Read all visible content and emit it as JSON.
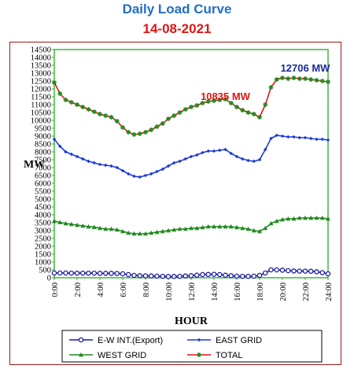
{
  "title": "Daily Load Curve",
  "subtitle": "14-08-2021",
  "chart_data": {
    "type": "line",
    "xlabel": "HOUR",
    "ylabel": "MW",
    "xlim": [
      0,
      24
    ],
    "ylim": [
      0,
      14500
    ],
    "yticks": [
      0,
      500,
      1000,
      1500,
      2000,
      2500,
      3000,
      3500,
      4000,
      4500,
      5000,
      5500,
      6000,
      6500,
      7000,
      7500,
      8000,
      8500,
      9000,
      9500,
      10000,
      10500,
      11000,
      11500,
      12000,
      12500,
      13000,
      13500,
      14000,
      14500
    ],
    "xtick_labels": [
      "0:00",
      "2:00",
      "4:00",
      "6:00",
      "8:00",
      "10:00",
      "12:00",
      "14:00",
      "16:00",
      "18:00",
      "20:00",
      "22:00",
      "24:00"
    ],
    "legend_position": "bottom",
    "annotations": [
      {
        "text": "10835 MW",
        "x": 15,
        "y": 11300,
        "color": "#e01515"
      },
      {
        "text": "12706 MW",
        "x": 22,
        "y": 13100,
        "color": "#1a2a9c"
      }
    ],
    "series": [
      {
        "name": "E-W INT.(Export)",
        "color": "#1a1aa0",
        "marker": "circle",
        "x": [
          0,
          0.5,
          1,
          1.5,
          2,
          2.5,
          3,
          3.5,
          4,
          4.5,
          5,
          5.5,
          6,
          6.5,
          7,
          7.5,
          8,
          8.5,
          9,
          9.5,
          10,
          10.5,
          11,
          11.5,
          12,
          12.5,
          13,
          13.5,
          14,
          14.5,
          15,
          15.5,
          16,
          16.5,
          17,
          17.5,
          18,
          18.5,
          19,
          19.5,
          20,
          20.5,
          21,
          21.5,
          22,
          22.5,
          23,
          23.5,
          24
        ],
        "y": [
          300,
          300,
          300,
          290,
          290,
          290,
          290,
          290,
          280,
          280,
          280,
          270,
          250,
          200,
          150,
          130,
          120,
          110,
          100,
          90,
          80,
          80,
          90,
          110,
          130,
          160,
          200,
          210,
          220,
          200,
          160,
          130,
          100,
          90,
          90,
          100,
          150,
          300,
          500,
          500,
          480,
          450,
          430,
          420,
          420,
          410,
          380,
          320,
          250
        ]
      },
      {
        "name": "EAST GRID",
        "color": "#1a3ad8",
        "marker": "diamond",
        "x": [
          0,
          0.5,
          1,
          1.5,
          2,
          2.5,
          3,
          3.5,
          4,
          4.5,
          5,
          5.5,
          6,
          6.5,
          7,
          7.5,
          8,
          8.5,
          9,
          9.5,
          10,
          10.5,
          11,
          11.5,
          12,
          12.5,
          13,
          13.5,
          14,
          14.5,
          15,
          15.5,
          16,
          16.5,
          17,
          17.5,
          18,
          18.5,
          19,
          19.5,
          20,
          20.5,
          21,
          21.5,
          22,
          22.5,
          23,
          23.5,
          24
        ],
        "y": [
          8800,
          8350,
          8000,
          7850,
          7700,
          7550,
          7400,
          7300,
          7200,
          7150,
          7100,
          7000,
          6800,
          6600,
          6450,
          6400,
          6500,
          6600,
          6750,
          6900,
          7100,
          7300,
          7400,
          7550,
          7700,
          7800,
          7950,
          8050,
          8050,
          8100,
          8150,
          7900,
          7700,
          7550,
          7450,
          7400,
          7500,
          8150,
          8850,
          9050,
          9000,
          8950,
          8950,
          8900,
          8900,
          8850,
          8800,
          8800,
          8750
        ]
      },
      {
        "name": "WEST GRID",
        "color": "#1f8a1f",
        "marker": "triangle",
        "x": [
          0,
          0.5,
          1,
          1.5,
          2,
          2.5,
          3,
          3.5,
          4,
          4.5,
          5,
          5.5,
          6,
          6.5,
          7,
          7.5,
          8,
          8.5,
          9,
          9.5,
          10,
          10.5,
          11,
          11.5,
          12,
          12.5,
          13,
          13.5,
          14,
          14.5,
          15,
          15.5,
          16,
          16.5,
          17,
          17.5,
          18,
          18.5,
          19,
          19.5,
          20,
          20.5,
          21,
          21.5,
          22,
          22.5,
          23,
          23.5,
          24
        ],
        "y": [
          3600,
          3520,
          3450,
          3400,
          3350,
          3300,
          3250,
          3220,
          3150,
          3100,
          3100,
          3050,
          2950,
          2850,
          2800,
          2800,
          2800,
          2850,
          2900,
          2950,
          3000,
          3050,
          3100,
          3100,
          3150,
          3150,
          3200,
          3250,
          3250,
          3250,
          3250,
          3250,
          3200,
          3150,
          3100,
          3000,
          2950,
          3150,
          3450,
          3600,
          3700,
          3750,
          3750,
          3800,
          3800,
          3800,
          3800,
          3800,
          3750
        ]
      },
      {
        "name": "TOTAL",
        "color": "#e01515",
        "marker": "star",
        "marker_color": "#1f8a1f",
        "x": [
          0,
          0.5,
          1,
          1.5,
          2,
          2.5,
          3,
          3.5,
          4,
          4.5,
          5,
          5.5,
          6,
          6.5,
          7,
          7.5,
          8,
          8.5,
          9,
          9.5,
          10,
          10.5,
          11,
          11.5,
          12,
          12.5,
          13,
          13.5,
          14,
          14.5,
          15,
          15.5,
          16,
          16.5,
          17,
          17.5,
          18,
          18.5,
          19,
          19.5,
          20,
          20.5,
          21,
          21.5,
          22,
          22.5,
          23,
          23.5,
          24
        ],
        "y": [
          12400,
          11700,
          11300,
          11150,
          11000,
          10850,
          10700,
          10550,
          10400,
          10300,
          10200,
          9950,
          9550,
          9250,
          9100,
          9150,
          9250,
          9400,
          9600,
          9800,
          10100,
          10300,
          10500,
          10700,
          10850,
          10950,
          11100,
          11200,
          11250,
          11300,
          11350,
          11100,
          10850,
          10650,
          10500,
          10400,
          10200,
          11000,
          12100,
          12600,
          12700,
          12650,
          12700,
          12650,
          12650,
          12600,
          12550,
          12500,
          12450
        ]
      }
    ]
  }
}
